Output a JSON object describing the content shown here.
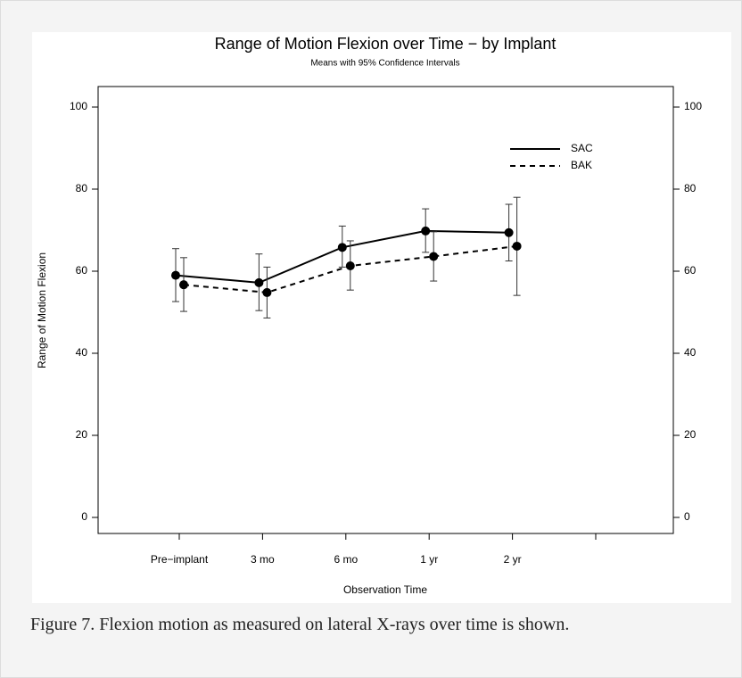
{
  "chart_data": {
    "type": "line",
    "title": "Range of Motion Flexion over Time − by Implant",
    "subtitle": "Means with 95% Confidence Intervals",
    "x_label": "Observation Time",
    "y_label": "Range of Motion Flexion",
    "categories": [
      "Pre−implant",
      "3 mo",
      "6 mo",
      "1 yr",
      "2 yr",
      null
    ],
    "series": [
      {
        "name": "SAC",
        "color": "#000000",
        "line_style": "solid",
        "values": [
          59,
          57.2,
          65.8,
          69.8,
          69.4,
          null
        ],
        "lower": [
          52.6,
          50.4,
          61,
          64.6,
          62.5,
          null
        ],
        "upper": [
          65.5,
          64.2,
          71,
          75.2,
          76.3,
          null
        ]
      },
      {
        "name": "BAK",
        "color": "#000000",
        "line_style": "dashed",
        "values": [
          56.7,
          54.8,
          61.3,
          63.6,
          66.1,
          null
        ],
        "lower": [
          50.2,
          48.6,
          55.4,
          57.6,
          54.1,
          null
        ],
        "upper": [
          63.3,
          61,
          67.4,
          69.6,
          78,
          null
        ]
      }
    ],
    "ylim": [
      0,
      100
    ],
    "yticks": [
      0,
      20,
      40,
      60,
      80,
      100
    ],
    "y2lim": [
      0,
      100
    ],
    "y2ticks": [
      0,
      20,
      40,
      60,
      80,
      100
    ],
    "grid": false,
    "legend": "upper right"
  },
  "caption": "Figure 7. Flexion motion as measured on lateral X-rays over time is shown."
}
